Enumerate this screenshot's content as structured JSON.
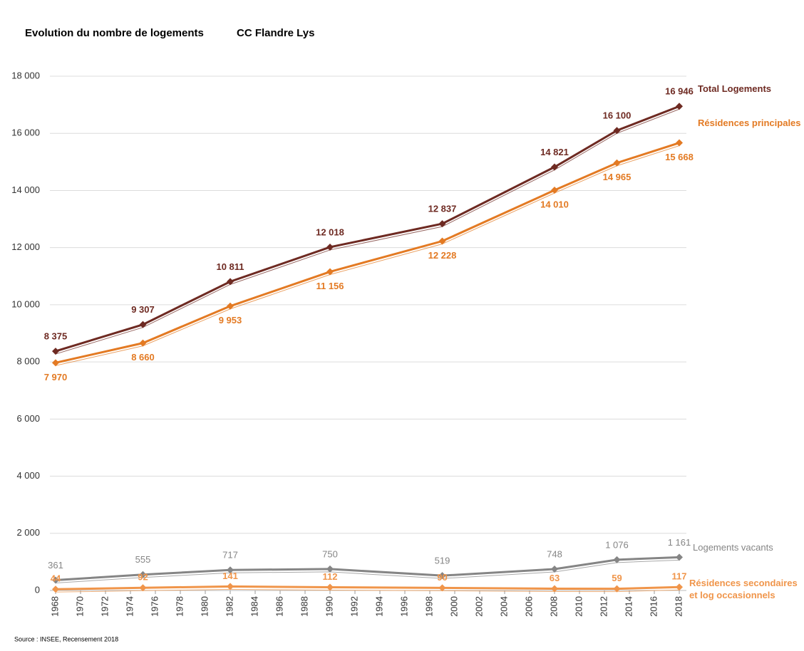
{
  "chart_data": {
    "type": "line",
    "title": "Evolution du nombre de logements",
    "subtitle": "CC Flandre Lys",
    "source": "Source : INSEE, Recensement 2018",
    "x": [
      1968,
      1975,
      1982,
      1990,
      1999,
      2008,
      2013,
      2018
    ],
    "xlim": [
      1968,
      2018
    ],
    "xticks": [
      1968,
      1970,
      1972,
      1974,
      1976,
      1978,
      1980,
      1982,
      1984,
      1986,
      1988,
      1990,
      1992,
      1994,
      1996,
      1998,
      2000,
      2002,
      2004,
      2006,
      2008,
      2010,
      2012,
      2014,
      2016,
      2018
    ],
    "ylim": [
      0,
      18000
    ],
    "yticks": [
      0,
      {
        "value": 2000,
        "label": "2 000"
      },
      {
        "value": 4000,
        "label": "4 000"
      },
      {
        "value": 6000,
        "label": "6 000"
      },
      {
        "value": 8000,
        "label": "8 000"
      },
      {
        "value": 10000,
        "label": "10 000"
      },
      {
        "value": 12000,
        "label": "12 000"
      },
      {
        "value": 14000,
        "label": "14 000"
      },
      {
        "value": 16000,
        "label": "16 000"
      },
      {
        "value": 18000,
        "label": "18 000"
      }
    ],
    "grid": true,
    "series": [
      {
        "name": "Total Logements",
        "color": "#6e2a22",
        "values": [
          8375,
          9307,
          10811,
          12018,
          12837,
          14821,
          16100,
          16946
        ],
        "value_labels": [
          "8 375",
          "9 307",
          "10 811",
          "12 018",
          "12 837",
          "14 821",
          "16 100",
          "16 946"
        ]
      },
      {
        "name": "Résidences principales",
        "color": "#e37a23",
        "values": [
          7970,
          8660,
          9953,
          11156,
          12228,
          14010,
          14965,
          15668
        ],
        "value_labels": [
          "7 970",
          "8 660",
          "9 953",
          "11 156",
          "12 228",
          "14 010",
          "14 965",
          "15 668"
        ]
      },
      {
        "name": "Logements vacants",
        "color": "#858585",
        "values": [
          361,
          555,
          717,
          750,
          519,
          748,
          1076,
          1161
        ],
        "value_labels": [
          "361",
          "555",
          "717",
          "750",
          "519",
          "748",
          "1 076",
          "1 161"
        ]
      },
      {
        "name": "Résidences secondaires et log occasionnels",
        "color": "#f0954a",
        "values": [
          44,
          92,
          141,
          112,
          90,
          63,
          59,
          117
        ],
        "value_labels": [
          "44",
          "92",
          "141",
          "112",
          "90",
          "63",
          "59",
          "117"
        ]
      }
    ]
  }
}
